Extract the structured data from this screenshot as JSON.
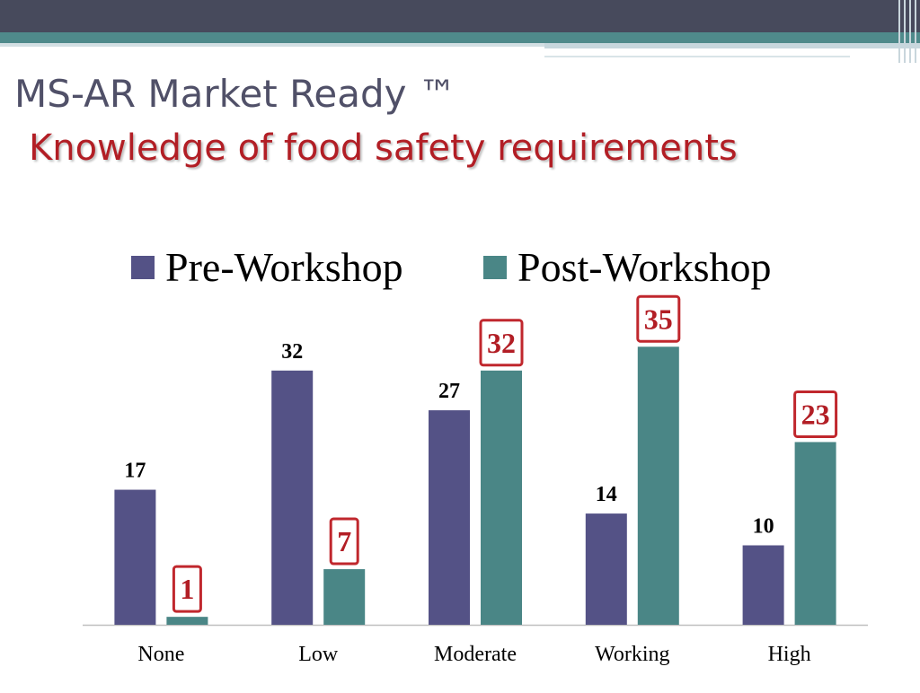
{
  "slide": {
    "title": "MS-AR Market Ready ™",
    "subtitle": "Knowledge of food safety requirements"
  },
  "colors": {
    "pre": "#545286",
    "post": "#4a8686",
    "highlight_box": "#c0272d",
    "highlight_text": "#b21e25",
    "label_text": "#000000"
  },
  "chart_data": {
    "type": "bar",
    "title": "",
    "xlabel": "",
    "ylabel": "",
    "categories": [
      "None",
      "Low",
      "Moderate",
      "Working",
      "High"
    ],
    "series": [
      {
        "name": "Pre-Workshop",
        "values": [
          17,
          32,
          27,
          14,
          10
        ]
      },
      {
        "name": "Post-Workshop",
        "values": [
          1,
          7,
          32,
          35,
          23
        ]
      }
    ],
    "ylim": [
      0,
      40
    ],
    "grid": false,
    "legend": "top",
    "data_labels": true,
    "highlighted_series": "Post-Workshop"
  }
}
